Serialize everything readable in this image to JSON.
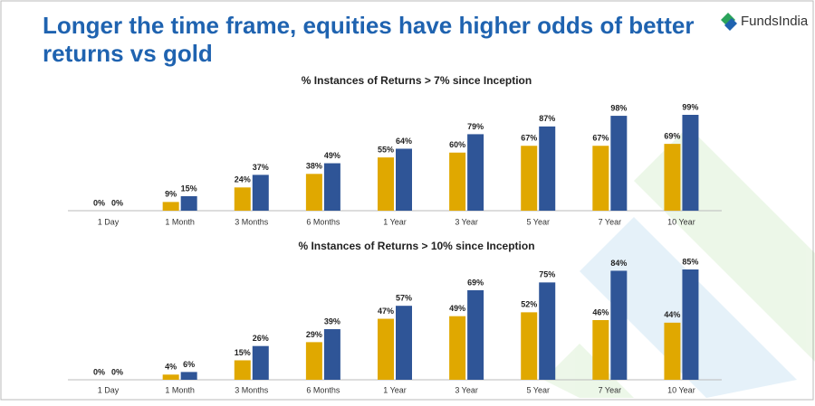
{
  "header": {
    "title_line1": "Longer the time frame, equities have higher odds of better",
    "title_line2": "returns vs gold",
    "logo": "FundsIndia"
  },
  "chart_data": [
    {
      "type": "bar",
      "title": "% Instances of Returns > 7% since Inception",
      "categories": [
        "1 Day",
        "1 Month",
        "3 Months",
        "6 Months",
        "1 Year",
        "3 Year",
        "5 Year",
        "7 Year",
        "10 Year"
      ],
      "series": [
        {
          "color": "#e0a800",
          "values": [
            0,
            9,
            24,
            38,
            55,
            60,
            67,
            67,
            69
          ],
          "value_labels": [
            "0%",
            "9%",
            "24%",
            "38%",
            "55%",
            "60%",
            "67%",
            "67%",
            "69%"
          ]
        },
        {
          "color": "#2f5597",
          "values": [
            0,
            15,
            37,
            49,
            64,
            79,
            87,
            98,
            99
          ],
          "value_labels": [
            "0%",
            "15%",
            "37%",
            "49%",
            "64%",
            "79%",
            "87%",
            "98%",
            "99%"
          ]
        }
      ]
    },
    {
      "type": "bar",
      "title": "% Instances of Returns > 10% since Inception",
      "categories": [
        "1 Day",
        "1 Month",
        "3 Months",
        "6 Months",
        "1 Year",
        "3 Year",
        "5 Year",
        "7 Year",
        "10 Year"
      ],
      "series": [
        {
          "color": "#e0a800",
          "values": [
            0,
            4,
            15,
            29,
            47,
            49,
            52,
            46,
            44
          ],
          "value_labels": [
            "0%",
            "4%",
            "15%",
            "29%",
            "47%",
            "49%",
            "52%",
            "46%",
            "44%"
          ]
        },
        {
          "color": "#2f5597",
          "values": [
            0,
            6,
            26,
            39,
            57,
            69,
            75,
            84,
            85
          ],
          "value_labels": [
            "0%",
            "6%",
            "26%",
            "39%",
            "57%",
            "69%",
            "75%",
            "84%",
            "85%"
          ]
        }
      ]
    }
  ]
}
